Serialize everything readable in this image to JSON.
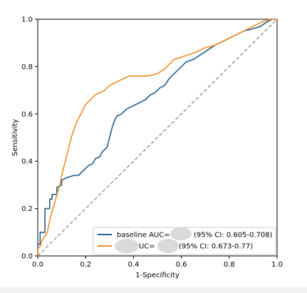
{
  "chart_data": {
    "type": "line",
    "title": "",
    "xlabel": "1-Specificity",
    "ylabel": "Sensitivity",
    "xlim": [
      0.0,
      1.0
    ],
    "ylim": [
      0.0,
      1.0
    ],
    "xticks": [
      "0.0",
      "0.2",
      "0.4",
      "0.6",
      "0.8",
      "1.0"
    ],
    "yticks": [
      "0.0",
      "0.2",
      "0.4",
      "0.6",
      "0.8",
      "1.0"
    ],
    "grid": false,
    "legend_position": "lower-right",
    "series": [
      {
        "name": "baseline AUC=",
        "legend_suffix": "(95% CI: 0.605-0.708)",
        "color": "#1f5f8b",
        "points": [
          [
            0.0,
            0.0
          ],
          [
            0.0,
            0.05
          ],
          [
            0.01,
            0.05
          ],
          [
            0.01,
            0.1
          ],
          [
            0.03,
            0.1
          ],
          [
            0.03,
            0.2
          ],
          [
            0.05,
            0.2
          ],
          [
            0.05,
            0.24
          ],
          [
            0.06,
            0.24
          ],
          [
            0.06,
            0.26
          ],
          [
            0.08,
            0.26
          ],
          [
            0.08,
            0.29
          ],
          [
            0.1,
            0.3
          ],
          [
            0.1,
            0.32
          ],
          [
            0.12,
            0.33
          ],
          [
            0.15,
            0.34
          ],
          [
            0.17,
            0.34
          ],
          [
            0.19,
            0.36
          ],
          [
            0.21,
            0.38
          ],
          [
            0.23,
            0.39
          ],
          [
            0.24,
            0.41
          ],
          [
            0.26,
            0.42
          ],
          [
            0.27,
            0.44
          ],
          [
            0.29,
            0.46
          ],
          [
            0.3,
            0.5
          ],
          [
            0.31,
            0.54
          ],
          [
            0.32,
            0.57
          ],
          [
            0.33,
            0.59
          ],
          [
            0.35,
            0.6
          ],
          [
            0.37,
            0.62
          ],
          [
            0.39,
            0.63
          ],
          [
            0.41,
            0.64
          ],
          [
            0.43,
            0.65
          ],
          [
            0.45,
            0.66
          ],
          [
            0.47,
            0.68
          ],
          [
            0.49,
            0.69
          ],
          [
            0.51,
            0.71
          ],
          [
            0.53,
            0.72
          ],
          [
            0.55,
            0.75
          ],
          [
            0.57,
            0.77
          ],
          [
            0.6,
            0.8
          ],
          [
            0.62,
            0.82
          ],
          [
            0.65,
            0.83
          ],
          [
            0.68,
            0.85
          ],
          [
            0.71,
            0.87
          ],
          [
            0.74,
            0.89
          ],
          [
            0.78,
            0.91
          ],
          [
            0.82,
            0.93
          ],
          [
            0.86,
            0.95
          ],
          [
            0.9,
            0.96
          ],
          [
            0.93,
            0.97
          ],
          [
            0.96,
            0.99
          ],
          [
            0.98,
            1.0
          ],
          [
            1.0,
            1.0
          ]
        ]
      },
      {
        "name": "",
        "legend_prefix": "UC=",
        "legend_suffix": "(95% CI: 0.673-0.77)",
        "color": "#f08a24",
        "points": [
          [
            0.0,
            0.0
          ],
          [
            0.0,
            0.03
          ],
          [
            0.01,
            0.04
          ],
          [
            0.02,
            0.07
          ],
          [
            0.04,
            0.1
          ],
          [
            0.05,
            0.15
          ],
          [
            0.06,
            0.19
          ],
          [
            0.07,
            0.22
          ],
          [
            0.08,
            0.26
          ],
          [
            0.09,
            0.29
          ],
          [
            0.1,
            0.34
          ],
          [
            0.11,
            0.38
          ],
          [
            0.12,
            0.42
          ],
          [
            0.13,
            0.46
          ],
          [
            0.14,
            0.5
          ],
          [
            0.15,
            0.53
          ],
          [
            0.16,
            0.56
          ],
          [
            0.17,
            0.58
          ],
          [
            0.18,
            0.6
          ],
          [
            0.19,
            0.62
          ],
          [
            0.2,
            0.64
          ],
          [
            0.22,
            0.66
          ],
          [
            0.24,
            0.68
          ],
          [
            0.26,
            0.69
          ],
          [
            0.28,
            0.7
          ],
          [
            0.3,
            0.72
          ],
          [
            0.32,
            0.73
          ],
          [
            0.34,
            0.74
          ],
          [
            0.36,
            0.75
          ],
          [
            0.38,
            0.76
          ],
          [
            0.42,
            0.76
          ],
          [
            0.46,
            0.76
          ],
          [
            0.5,
            0.77
          ],
          [
            0.53,
            0.79
          ],
          [
            0.55,
            0.81
          ],
          [
            0.57,
            0.83
          ],
          [
            0.6,
            0.84
          ],
          [
            0.63,
            0.85
          ],
          [
            0.66,
            0.86
          ],
          [
            0.7,
            0.88
          ],
          [
            0.74,
            0.89
          ],
          [
            0.78,
            0.91
          ],
          [
            0.82,
            0.93
          ],
          [
            0.86,
            0.95
          ],
          [
            0.9,
            0.97
          ],
          [
            0.94,
            0.99
          ],
          [
            0.97,
            1.0
          ],
          [
            1.0,
            1.0
          ]
        ]
      }
    ],
    "reference_line": {
      "points": [
        [
          0.0,
          0.0
        ],
        [
          1.0,
          1.0
        ]
      ],
      "color": "#808080",
      "style": "dashed"
    }
  }
}
